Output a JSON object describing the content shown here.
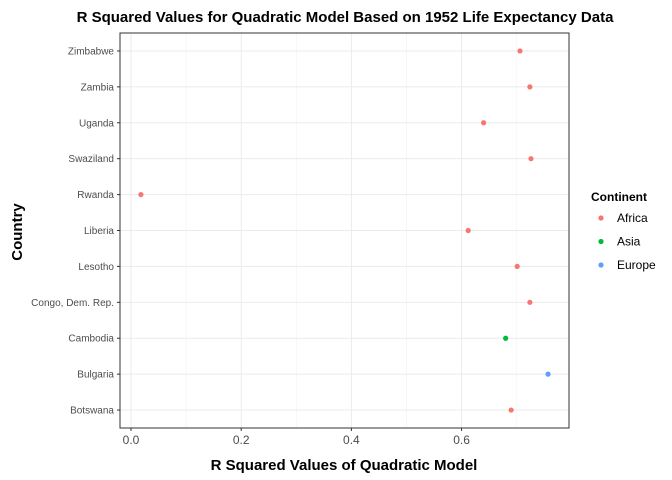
{
  "chart_data": {
    "type": "scatter",
    "title": "R Squared Values for Quadratic Model Based on 1952 Life Expectancy Data",
    "xlabel": "R Squared Values of Quadratic Model",
    "ylabel": "Country",
    "xlim": [
      -0.02,
      0.795
    ],
    "x_ticks": [
      0.0,
      0.2,
      0.4,
      0.6
    ],
    "x_tick_labels": [
      "0.0",
      "0.2",
      "0.4",
      "0.6"
    ],
    "categories": [
      "Botswana",
      "Bulgaria",
      "Cambodia",
      "Congo, Dem. Rep.",
      "Lesotho",
      "Liberia",
      "Rwanda",
      "Swaziland",
      "Uganda",
      "Zambia",
      "Zimbabwe"
    ],
    "points": [
      {
        "country": "Zimbabwe",
        "value": 0.706,
        "continent": "Africa"
      },
      {
        "country": "Zambia",
        "value": 0.724,
        "continent": "Africa"
      },
      {
        "country": "Uganda",
        "value": 0.64,
        "continent": "Africa"
      },
      {
        "country": "Swaziland",
        "value": 0.726,
        "continent": "Africa"
      },
      {
        "country": "Rwanda",
        "value": 0.018,
        "continent": "Africa"
      },
      {
        "country": "Liberia",
        "value": 0.612,
        "continent": "Africa"
      },
      {
        "country": "Lesotho",
        "value": 0.701,
        "continent": "Africa"
      },
      {
        "country": "Congo, Dem. Rep.",
        "value": 0.724,
        "continent": "Africa"
      },
      {
        "country": "Cambodia",
        "value": 0.68,
        "continent": "Asia"
      },
      {
        "country": "Bulgaria",
        "value": 0.757,
        "continent": "Europe"
      },
      {
        "country": "Botswana",
        "value": 0.69,
        "continent": "Africa"
      }
    ],
    "legend": {
      "title": "Continent",
      "placement": "right",
      "entries": [
        {
          "name": "Africa",
          "color": "#F8766D"
        },
        {
          "name": "Asia",
          "color": "#00BA38"
        },
        {
          "name": "Europe",
          "color": "#619CFF"
        }
      ]
    },
    "grid": true
  }
}
